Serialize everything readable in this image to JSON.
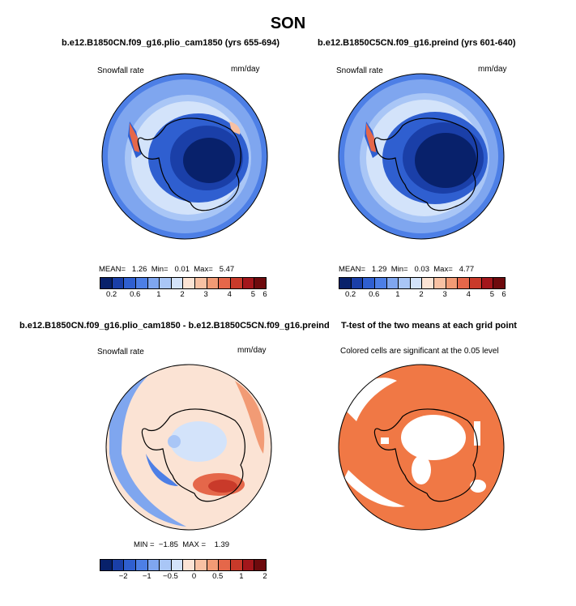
{
  "main_title": "SON",
  "panels": {
    "p1": {
      "title": "b.e12.B1850CN.f09_g16.plio_cam1850 (yrs 655-694)",
      "variable": "Snowfall rate",
      "units": "mm/day",
      "mean_label": "MEAN=",
      "mean": "1.26",
      "min_label": "Min=",
      "min": "0.01",
      "max_label": "Max=",
      "max": "5.47"
    },
    "p2": {
      "title": "b.e12.B1850C5CN.f09_g16.preind (yrs 601-640)",
      "variable": "Snowfall rate",
      "units": "mm/day",
      "mean_label": "MEAN=",
      "mean": "1.29",
      "min_label": "Min=",
      "min": "0.03",
      "max_label": "Max=",
      "max": "4.77"
    },
    "p3": {
      "title": "b.e12.B1850CN.f09_g16.plio_cam1850 - b.e12.B1850C5CN.f09_g16.preind",
      "variable": "Snowfall rate",
      "units": "mm/day",
      "min_label": "MIN =",
      "min": "−1.85",
      "max_label": "MAX =",
      "max": "1.39"
    },
    "p4": {
      "title": "T-test of the two means at each grid point",
      "note": "Colored cells are significant at the 0.05 level"
    }
  },
  "colorbar_mean": {
    "colors": [
      "#08216b",
      "#1a3fa8",
      "#2f5fd0",
      "#4d7fe6",
      "#7fa6ef",
      "#a9c6f6",
      "#d3e3fa",
      "#fbe3d4",
      "#f8c1a3",
      "#f29b75",
      "#e5674a",
      "#c93a2a",
      "#a3161b",
      "#6e0a0d"
    ],
    "ticks": [
      "0.2",
      "0.6",
      "1",
      "2",
      "3",
      "4",
      "5",
      "6"
    ]
  },
  "colorbar_diff": {
    "colors": [
      "#08216b",
      "#1a3fa8",
      "#2f5fd0",
      "#4d7fe6",
      "#7fa6ef",
      "#a9c6f6",
      "#d3e3fa",
      "#fbe3d4",
      "#f8c1a3",
      "#f29b75",
      "#e5674a",
      "#c93a2a",
      "#a3161b",
      "#6e0a0d"
    ],
    "ticks": [
      "−2",
      "−1",
      "−0.5",
      "0",
      "0.5",
      "1",
      "2"
    ]
  }
}
